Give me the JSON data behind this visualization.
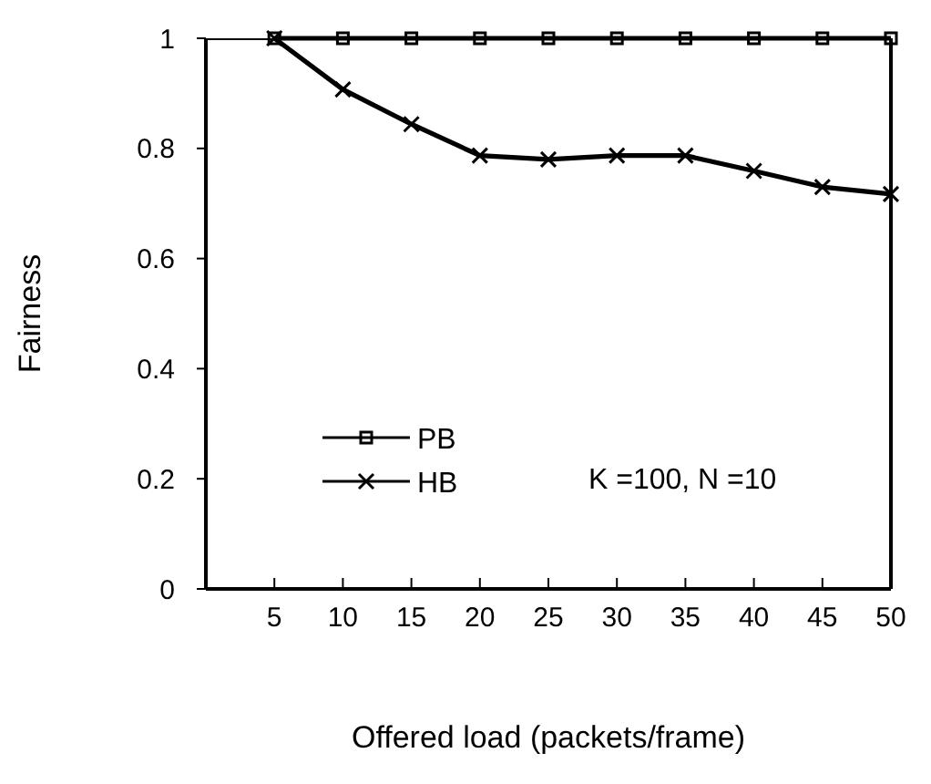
{
  "chart_data": {
    "type": "line",
    "xlabel": "Offered load (packets/frame)",
    "ylabel": "Fairness",
    "x": [
      5,
      10,
      15,
      20,
      25,
      30,
      35,
      40,
      45,
      50
    ],
    "series": [
      {
        "name": "PB",
        "color": "#000000",
        "marker": "square",
        "values": [
          1,
          1,
          1,
          1,
          1,
          1,
          1,
          1,
          1,
          1
        ]
      },
      {
        "name": "HB",
        "color": "#000000",
        "marker": "cross",
        "values": [
          1,
          0.907,
          0.844,
          0.787,
          0.78,
          0.787,
          0.787,
          0.759,
          0.73,
          0.717
        ]
      }
    ],
    "xlim": [
      0,
      50
    ],
    "xticks": [
      5,
      10,
      15,
      20,
      25,
      30,
      35,
      40,
      45,
      50
    ],
    "ylim": [
      0,
      1
    ],
    "yticks": [
      0,
      0.2,
      0.4,
      0.6,
      0.8,
      1
    ],
    "legend": "bottom left",
    "grid": false,
    "line_style": "solid",
    "annotations": [
      "K =100, N =10"
    ]
  }
}
